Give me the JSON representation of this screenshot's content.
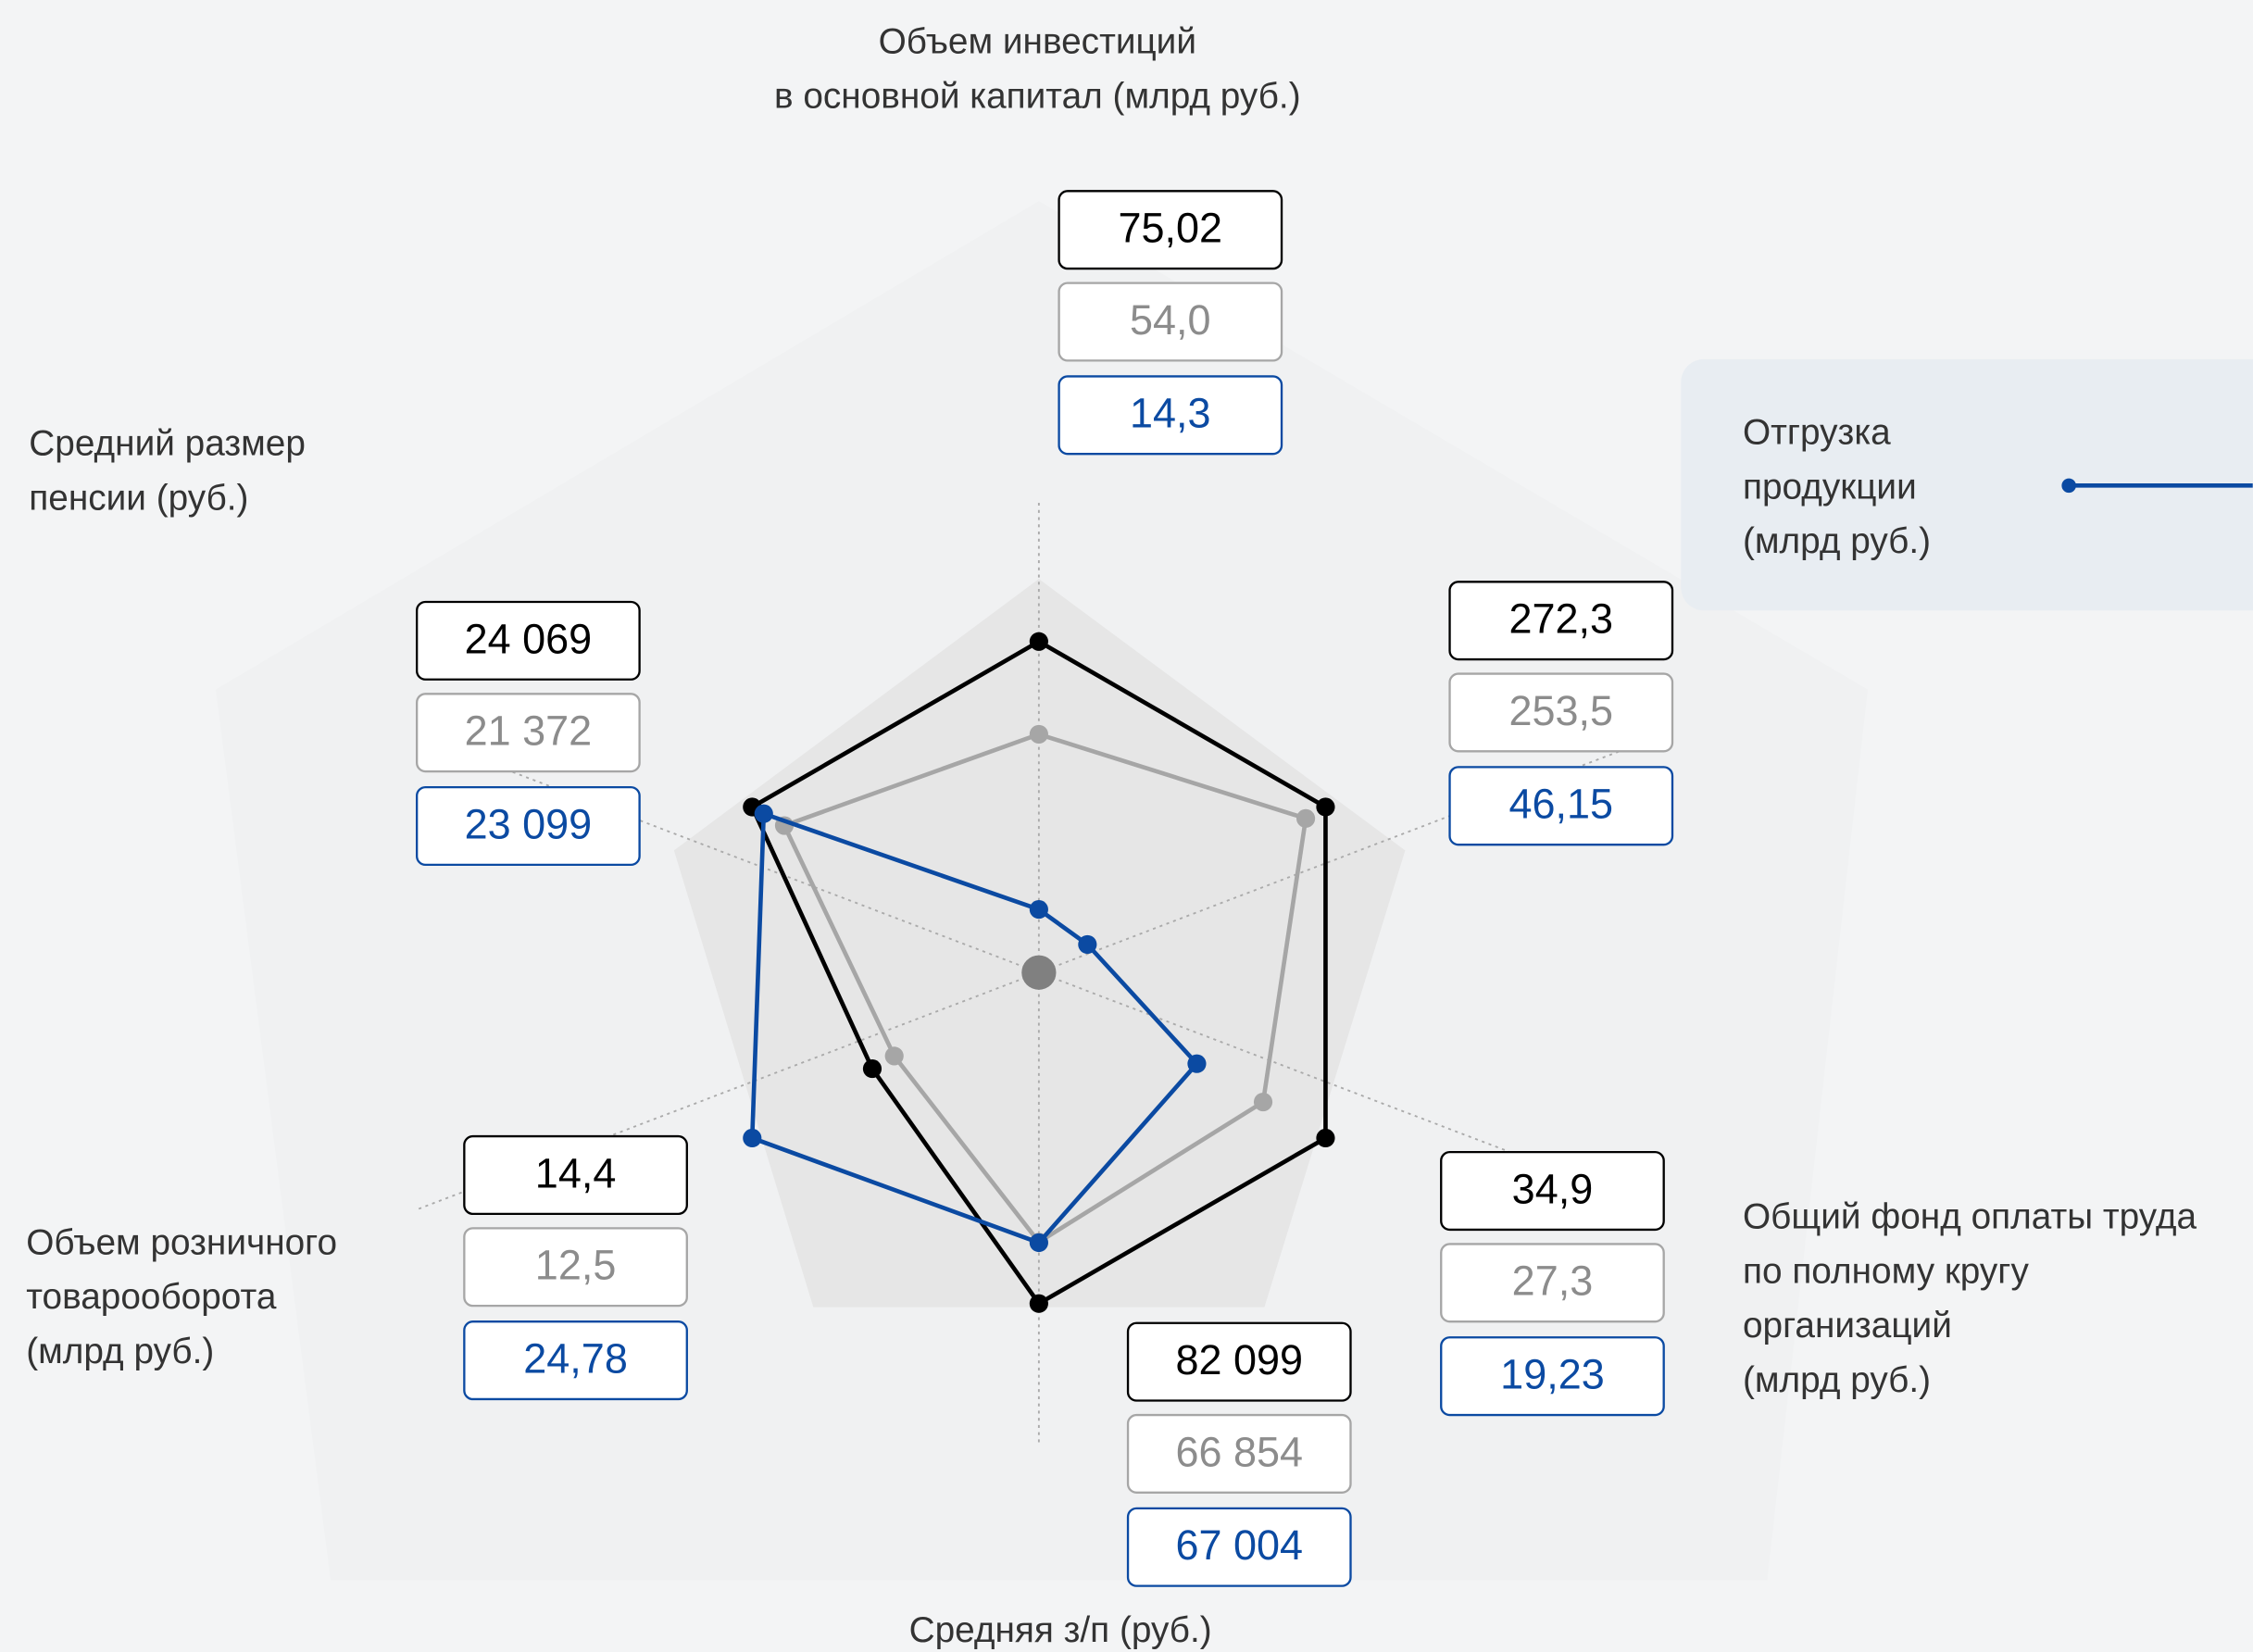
{
  "chart_data": {
    "type": "radar",
    "categories": [
      "Объем инвестиций\nв основной капитал (млрд руб.)",
      "Отгрузка\nпродукции\n(млрд руб.)",
      "Общий фонд оплаты труда\nпо полному кругу\nорганизаций\n(млрд руб.)",
      "Средняя з/п (руб.)",
      "Объем розничного\nтоварооборота\n(млрд руб.)",
      "Средний размер\nпенсии (руб.)"
    ],
    "series": [
      {
        "color": "#000000",
        "values": [
          75.02,
          272.3,
          34.9,
          82099,
          14.4,
          24069
        ],
        "value_labels": [
          "75,02",
          "272,3",
          "34,9",
          "82 099",
          "14,4",
          "24 069"
        ]
      },
      {
        "color": "#a6a6a6",
        "values": [
          54.0,
          253.5,
          27.3,
          66854,
          12.5,
          21372
        ],
        "value_labels": [
          "54,0",
          "253,5",
          "27,3",
          "66 854",
          "12,5",
          "21 372"
        ]
      },
      {
        "color": "#0b4aa2",
        "values": [
          14.3,
          46.15,
          19.23,
          67004,
          24.78,
          23099
        ],
        "value_labels": [
          "14,3",
          "46,15",
          "19,23",
          "67 004",
          "24,78",
          "23 099"
        ]
      }
    ]
  }
}
